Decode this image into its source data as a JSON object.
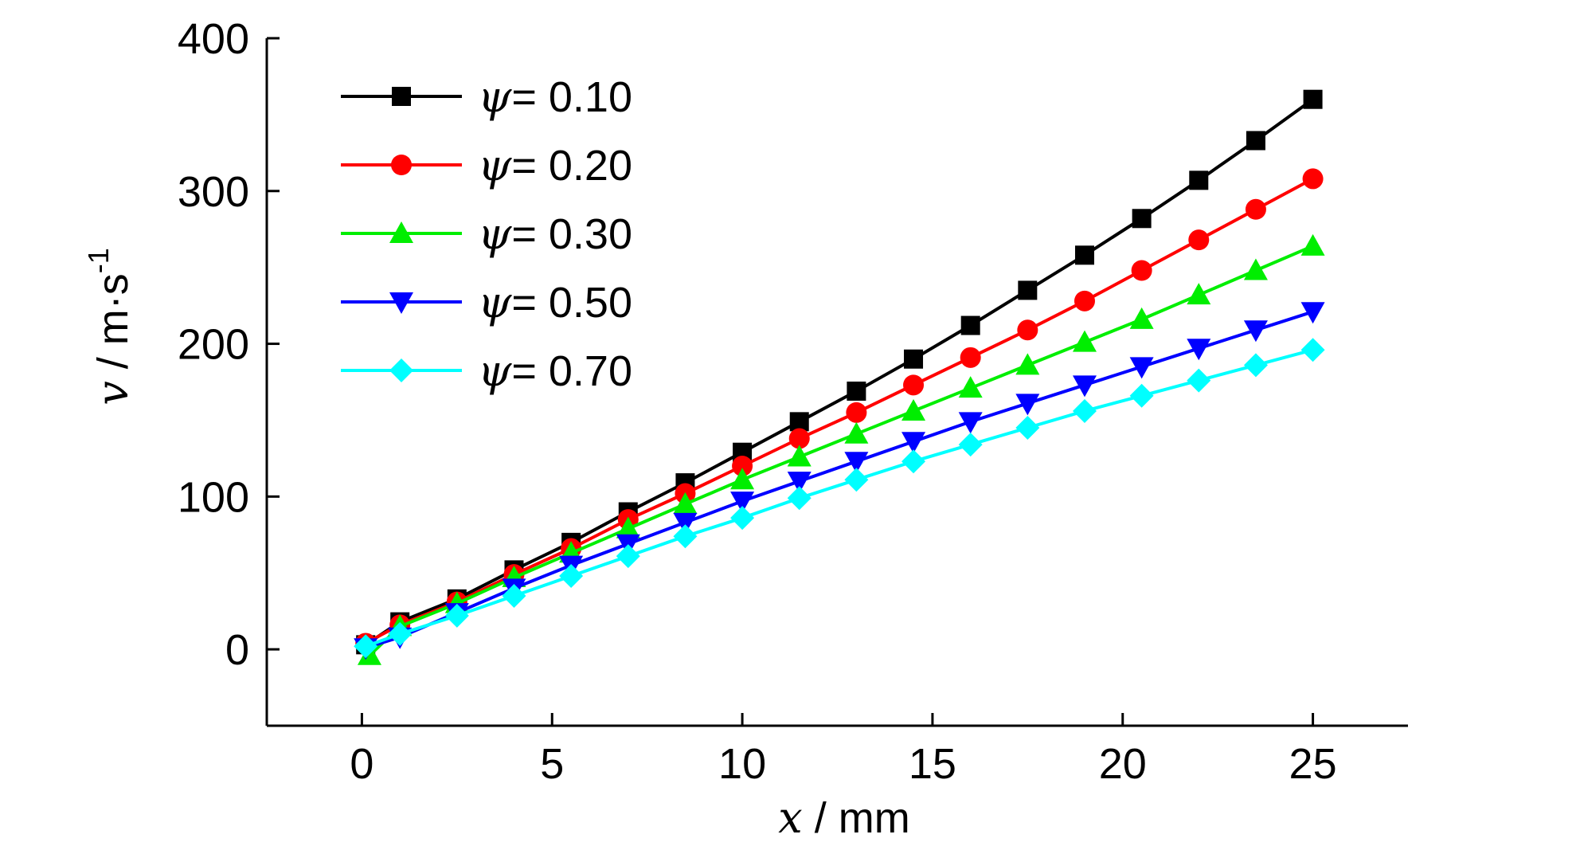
{
  "chart_data": {
    "type": "line",
    "xlabel": {
      "var": "x",
      "unit": " / mm"
    },
    "ylabel": {
      "var": "v",
      "unit": " / m·s",
      "sup": "-1"
    },
    "xlim": [
      -2.5,
      27.5
    ],
    "ylim": [
      -50,
      400
    ],
    "xticks": [
      0,
      5,
      10,
      15,
      20,
      25
    ],
    "yticks": [
      0,
      100,
      200,
      300,
      400
    ],
    "legend_position": "top-left",
    "grid": false,
    "series": [
      {
        "name": "ψ= 0.10",
        "symbol": "ψ",
        "value": "= 0.10",
        "color": "#000000",
        "marker": "square",
        "x": [
          0.1,
          1.0,
          2.5,
          4.0,
          5.5,
          7.0,
          8.5,
          10.0,
          11.5,
          13.0,
          14.5,
          16.0,
          17.5,
          19.0,
          20.5,
          22.0,
          23.5,
          25.0
        ],
        "y": [
          3,
          18,
          33,
          52,
          70,
          90,
          109,
          129,
          149,
          169,
          190,
          212,
          235,
          258,
          282,
          307,
          333,
          360
        ]
      },
      {
        "name": "ψ= 0.20",
        "symbol": "ψ",
        "value": "= 0.20",
        "color": "#ff0000",
        "marker": "circle",
        "x": [
          0.1,
          1.0,
          2.5,
          4.0,
          5.5,
          7.0,
          8.5,
          10.0,
          11.5,
          13.0,
          14.5,
          16.0,
          17.5,
          19.0,
          20.5,
          22.0,
          23.5,
          25.0
        ],
        "y": [
          4,
          16,
          31,
          49,
          66,
          85,
          102,
          120,
          138,
          155,
          173,
          191,
          209,
          228,
          248,
          268,
          288,
          308
        ]
      },
      {
        "name": "ψ= 0.30",
        "symbol": "ψ",
        "value": "= 0.30",
        "color": "#00ee00",
        "marker": "triangle-up",
        "x": [
          0.2,
          1.0,
          2.5,
          4.0,
          5.5,
          7.0,
          8.5,
          10.0,
          11.5,
          13.0,
          14.5,
          16.0,
          17.5,
          19.0,
          20.5,
          22.0,
          23.5,
          25.0
        ],
        "y": [
          -4,
          15,
          30,
          47,
          63,
          79,
          95,
          111,
          126,
          141,
          156,
          171,
          186,
          201,
          216,
          232,
          248,
          264
        ]
      },
      {
        "name": "ψ= 0.50",
        "symbol": "ψ",
        "value": "= 0.50",
        "color": "#0000ff",
        "marker": "triangle-down",
        "x": [
          0.1,
          1.0,
          2.5,
          4.0,
          5.5,
          7.0,
          8.5,
          10.0,
          11.5,
          13.0,
          14.5,
          16.0,
          17.5,
          19.0,
          20.5,
          22.0,
          23.5,
          25.0
        ],
        "y": [
          1,
          8,
          24,
          40,
          55,
          69,
          83,
          97,
          110,
          123,
          136,
          149,
          161,
          173,
          185,
          197,
          209,
          221
        ]
      },
      {
        "name": "ψ= 0.70",
        "symbol": "ψ",
        "value": "= 0.70",
        "color": "#00ffff",
        "marker": "diamond",
        "x": [
          0.1,
          1.0,
          2.5,
          4.0,
          5.5,
          7.0,
          8.5,
          10.0,
          11.5,
          13.0,
          14.5,
          16.0,
          17.5,
          19.0,
          20.5,
          22.0,
          23.5,
          25.0
        ],
        "y": [
          2,
          10,
          22,
          35,
          48,
          61,
          74,
          86,
          99,
          111,
          123,
          134,
          145,
          156,
          166,
          176,
          186,
          196
        ]
      }
    ]
  }
}
